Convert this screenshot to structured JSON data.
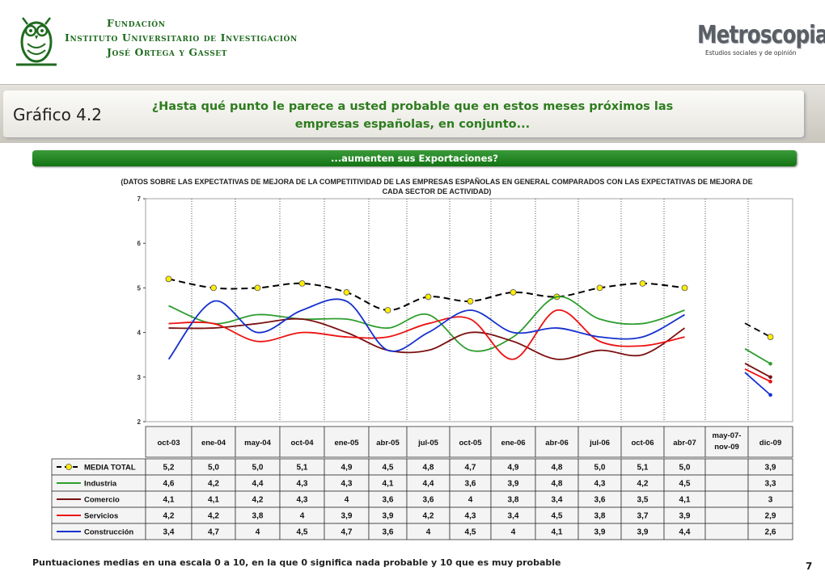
{
  "header": {
    "org_line1": "Fundación",
    "org_line2": "Instituto Universitario de Investigación",
    "org_line3": "José Ortega y Gasset",
    "brand": "Metroscopia",
    "brand_tagline": "Estudios sociales y de opinión"
  },
  "slide_label": "Gráfico 4.2",
  "question": "¿Hasta qué punto le parece a usted probable que en estos meses próximos las empresas españolas, en conjunto...",
  "subquestion": "...aumenten sus Exportaciones?",
  "note": "(DATOS SOBRE LAS EXPECTATIVAS DE MEJORA DE LA COMPETITIVIDAD DE LAS EMPRESAS ESPAÑOLAS EN GENERAL COMPARADOS CON LAS EXPECTATIVAS DE MEJORA DE CADA SECTOR DE ACTIVIDAD)",
  "footnote": "Puntuaciones medias en una escala 0 a 10, en la que 0 significa nada probable y 10 que es muy probable",
  "page_number": "7",
  "chart_data": {
    "type": "line",
    "categories": [
      "oct-03",
      "ene-04",
      "may-04",
      "oct-04",
      "ene-05",
      "abr-05",
      "jul-05",
      "oct-05",
      "ene-06",
      "abr-06",
      "jul-06",
      "oct-06",
      "abr-07",
      "may-07- nov-09",
      "dic-09"
    ],
    "ylim": [
      2,
      7
    ],
    "yticks": [
      "2",
      "3",
      "4",
      "5",
      "6",
      "7"
    ],
    "grid": "dotted vertical separators between categories",
    "legend": "table rows below the chart",
    "series": [
      {
        "name": "MEDIA TOTAL",
        "color": "#000000",
        "style": "dashed-markers",
        "values": [
          5.2,
          5.0,
          5.0,
          5.1,
          4.9,
          4.5,
          4.8,
          4.7,
          4.9,
          4.8,
          5.0,
          5.1,
          5.0,
          null,
          3.9
        ],
        "labels": [
          "5,2",
          "5,0",
          "5,0",
          "5,1",
          "4,9",
          "4,5",
          "4,8",
          "4,7",
          "4,9",
          "4,8",
          "5,0",
          "5,1",
          "5,0",
          "",
          "3,9"
        ]
      },
      {
        "name": "Industria",
        "color": "#2e9e2e",
        "style": "solid",
        "values": [
          4.6,
          4.2,
          4.4,
          4.3,
          4.3,
          4.1,
          4.4,
          3.6,
          3.9,
          4.8,
          4.3,
          4.2,
          4.5,
          null,
          3.3
        ],
        "labels": [
          "4,6",
          "4,2",
          "4,4",
          "4,3",
          "4,3",
          "4,1",
          "4,4",
          "3,6",
          "3,9",
          "4,8",
          "4,3",
          "4,2",
          "4,5",
          "",
          "3,3"
        ]
      },
      {
        "name": "Comercio",
        "color": "#7a1010",
        "style": "solid",
        "values": [
          4.1,
          4.1,
          4.2,
          4.3,
          4.0,
          3.6,
          3.6,
          4.0,
          3.8,
          3.4,
          3.6,
          3.5,
          4.1,
          null,
          3.0
        ],
        "labels": [
          "4,1",
          "4,1",
          "4,2",
          "4,3",
          "4",
          "3,6",
          "3,6",
          "4",
          "3,8",
          "3,4",
          "3,6",
          "3,5",
          "4,1",
          "",
          "3"
        ]
      },
      {
        "name": "Servicios",
        "color": "#ee1111",
        "style": "solid",
        "values": [
          4.2,
          4.2,
          3.8,
          4.0,
          3.9,
          3.9,
          4.2,
          4.3,
          3.4,
          4.5,
          3.8,
          3.7,
          3.9,
          null,
          2.9
        ],
        "labels": [
          "4,2",
          "4,2",
          "3,8",
          "4",
          "3,9",
          "3,9",
          "4,2",
          "4,3",
          "3,4",
          "4,5",
          "3,8",
          "3,7",
          "3,9",
          "",
          "2,9"
        ]
      },
      {
        "name": "Construcción",
        "color": "#1530d0",
        "style": "solid",
        "values": [
          3.4,
          4.7,
          4.0,
          4.5,
          4.7,
          3.6,
          4.0,
          4.5,
          4.0,
          4.1,
          3.9,
          3.9,
          4.4,
          null,
          2.6
        ],
        "labels": [
          "3,4",
          "4,7",
          "4",
          "4,5",
          "4,7",
          "3,6",
          "4",
          "4,5",
          "4",
          "4,1",
          "3,9",
          "3,9",
          "4,4",
          "",
          "2,6"
        ]
      }
    ]
  }
}
